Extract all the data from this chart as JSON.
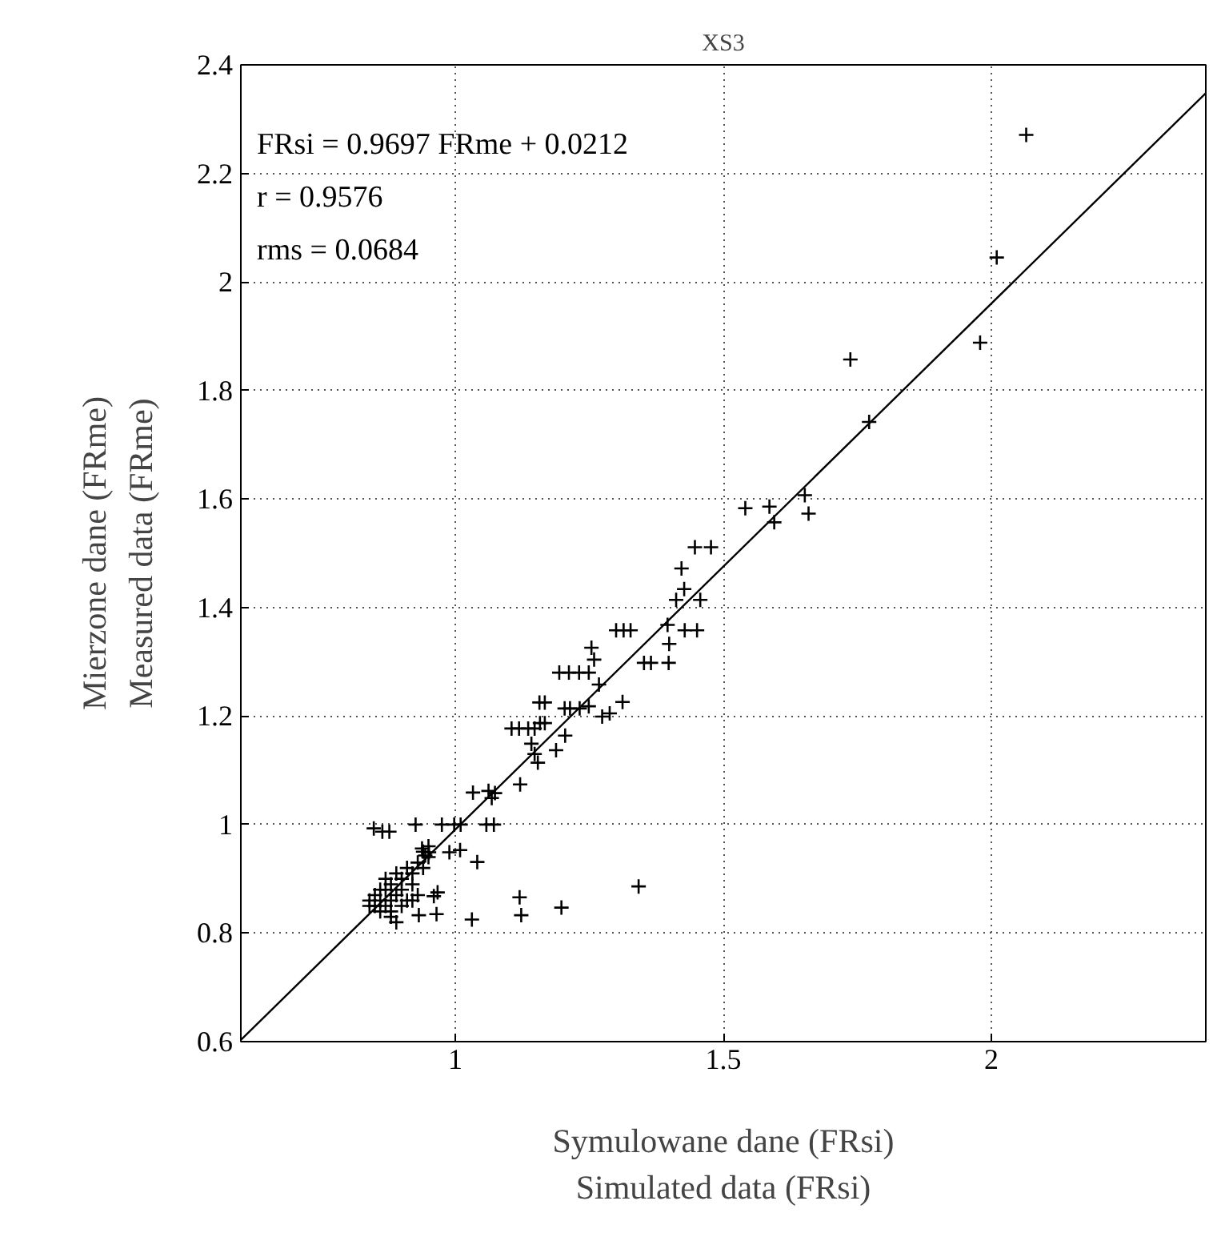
{
  "chart_data": {
    "type": "scatter",
    "title": "XS3",
    "xlabel": "Symulowane dane (FRsi)\nSimulated data (FRsi)",
    "ylabel": "Mierzone dane (FRme)\nMeasured data (FRme)",
    "annotations": [
      "FRsi = 0.9697 FRme + 0.0212",
      "r = 0.9576",
      "rms = 0.0684"
    ],
    "xlim": [
      0.6,
      2.4
    ],
    "ylim": [
      0.6,
      2.4
    ],
    "xticks": [
      {
        "value": 0.6,
        "label": null
      },
      1,
      1.5,
      2,
      {
        "value": 2.4,
        "label": null
      }
    ],
    "yticks": [
      0.6,
      0.8,
      1,
      1.2,
      1.4,
      1.6,
      1.8,
      2,
      2.2,
      2.4
    ],
    "grid": true,
    "marker": "cross",
    "series": [
      {
        "color": "#000000",
        "x": [
          2.065,
          2.01,
          1.979,
          1.737,
          1.772,
          1.541,
          1.586,
          1.595,
          1.652,
          1.659,
          1.447,
          1.477,
          1.422,
          1.427,
          1.412,
          1.457,
          1.396,
          1.428,
          1.451,
          1.399,
          1.398,
          1.352,
          1.365,
          1.3,
          1.314,
          1.327,
          1.254,
          1.259,
          1.194,
          1.212,
          1.231,
          1.249,
          1.268,
          1.312,
          1.274,
          1.288,
          1.249,
          1.232,
          1.204,
          1.214,
          1.157,
          1.167,
          1.205,
          1.188,
          1.105,
          1.119,
          1.136,
          1.148,
          1.158,
          1.167,
          1.142,
          1.148,
          1.154,
          1.121,
          1.033,
          1.062,
          1.068,
          1.074,
          1.058,
          1.072,
          0.926,
          0.975,
          0.998,
          1.01,
          0.989,
          1.009,
          1.041,
          0.951,
          0.944,
          0.938,
          0.848,
          0.864,
          0.877,
          0.96,
          0.967,
          0.965,
          0.932,
          1.031,
          1.12,
          1.123,
          1.198,
          1.342,
          0.84,
          0.85,
          0.85,
          0.86,
          0.86,
          0.87,
          0.87,
          0.88,
          0.88,
          0.88,
          0.89,
          0.89,
          0.9,
          0.9,
          0.9,
          0.91,
          0.91,
          0.92,
          0.92,
          0.93,
          0.93,
          0.89,
          0.86,
          0.87,
          0.84,
          0.94,
          0.95,
          0.95,
          0.94,
          0.92,
          0.88
        ],
        "values": [
          2.271,
          2.045,
          1.888,
          1.857,
          1.742,
          1.583,
          1.586,
          1.557,
          1.607,
          1.573,
          1.511,
          1.511,
          1.472,
          1.434,
          1.414,
          1.414,
          1.368,
          1.358,
          1.358,
          1.333,
          1.298,
          1.298,
          1.298,
          1.358,
          1.358,
          1.358,
          1.326,
          1.304,
          1.28,
          1.28,
          1.28,
          1.28,
          1.258,
          1.226,
          1.199,
          1.205,
          1.218,
          1.214,
          1.214,
          1.214,
          1.225,
          1.225,
          1.164,
          1.137,
          1.177,
          1.177,
          1.177,
          1.177,
          1.187,
          1.187,
          1.149,
          1.13,
          1.114,
          1.074,
          1.059,
          1.062,
          1.049,
          1.058,
          1.0,
          1.0,
          1.0,
          1.0,
          1.0,
          1.0,
          0.949,
          0.953,
          0.931,
          0.949,
          0.943,
          0.956,
          0.993,
          0.987,
          0.987,
          0.868,
          0.875,
          0.835,
          0.833,
          0.825,
          0.866,
          0.833,
          0.847,
          0.886,
          0.86,
          0.85,
          0.87,
          0.84,
          0.86,
          0.85,
          0.88,
          0.83,
          0.86,
          0.89,
          0.87,
          0.91,
          0.85,
          0.88,
          0.9,
          0.86,
          0.92,
          0.89,
          0.91,
          0.93,
          0.87,
          0.82,
          0.88,
          0.9,
          0.85,
          0.95,
          0.96,
          0.94,
          0.92,
          0.86,
          0.84
        ]
      },
      {
        "type": "line",
        "marker": "none",
        "color": "#000000",
        "x": [
          0.6,
          2.4
        ],
        "values": [
          0.603,
          2.348
        ]
      }
    ]
  }
}
